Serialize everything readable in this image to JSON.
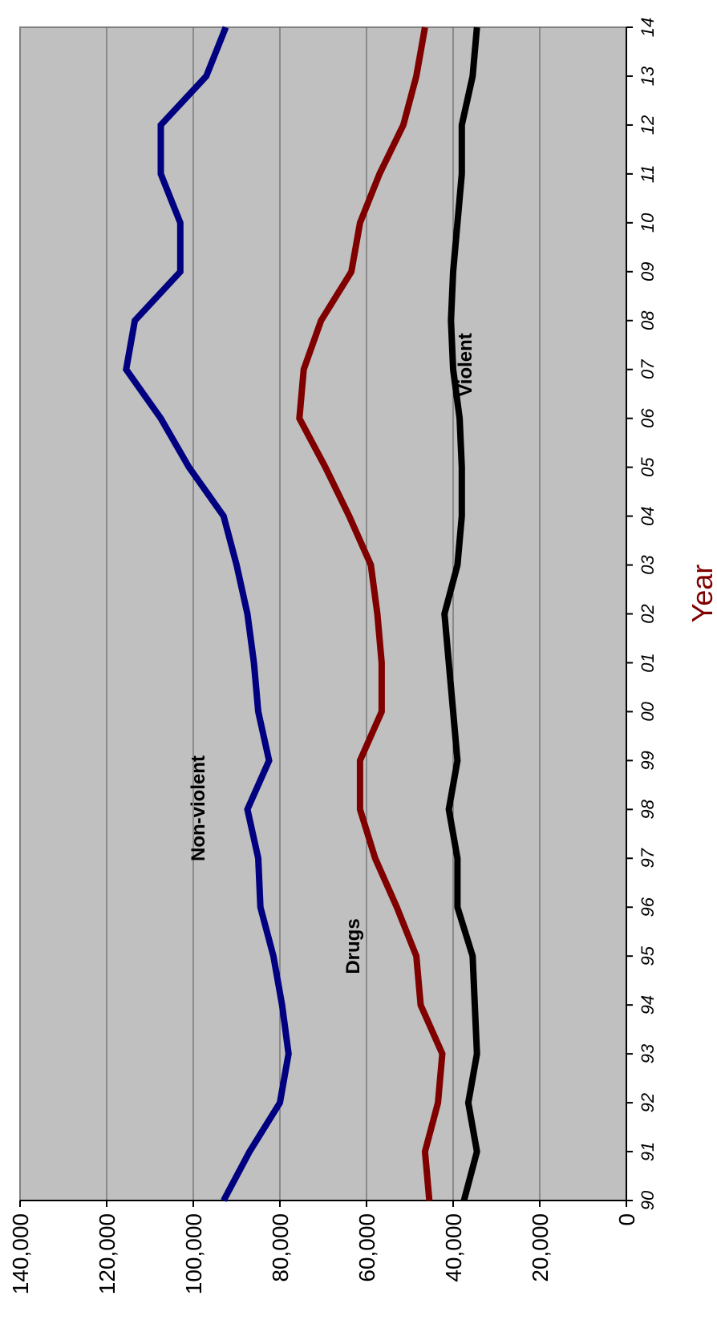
{
  "chart_data": {
    "type": "line",
    "title": "",
    "xlabel": "Year",
    "ylabel": "",
    "x": [
      "90",
      "91",
      "92",
      "93",
      "94",
      "95",
      "96",
      "97",
      "98",
      "99",
      "00",
      "01",
      "02",
      "03",
      "04",
      "05",
      "06",
      "07",
      "08",
      "09",
      "10",
      "11",
      "12",
      "13",
      "14"
    ],
    "ylim": [
      0,
      140000
    ],
    "yticks": [
      "0",
      "20,000",
      "40,000",
      "60,000",
      "80,000",
      "100,000",
      "120,000",
      "140,000"
    ],
    "grid": true,
    "series": [
      {
        "name": "Non-violent",
        "color": "#000080",
        "values": [
          93000,
          87000,
          80000,
          78000,
          79500,
          81500,
          84500,
          85000,
          87500,
          82500,
          85000,
          86000,
          87500,
          90000,
          93000,
          101000,
          107500,
          115500,
          113500,
          103000,
          103000,
          107500,
          107500,
          97000,
          92500
        ]
      },
      {
        "name": "Drugs",
        "color": "#800000",
        "values": [
          45500,
          46500,
          43500,
          42500,
          47500,
          48500,
          53000,
          58000,
          61500,
          61500,
          56500,
          56500,
          57500,
          59000,
          64000,
          69500,
          75500,
          74500,
          70500,
          63500,
          61500,
          57000,
          51500,
          48500,
          46500
        ]
      },
      {
        "name": "Violent",
        "color": "#000000",
        "values": [
          37500,
          34500,
          36500,
          34500,
          35000,
          35500,
          39000,
          39000,
          41000,
          39000,
          40000,
          41000,
          42000,
          39000,
          38000,
          38000,
          38500,
          40000,
          40500,
          40000,
          39000,
          38000,
          38000,
          35500,
          34500
        ]
      }
    ]
  }
}
